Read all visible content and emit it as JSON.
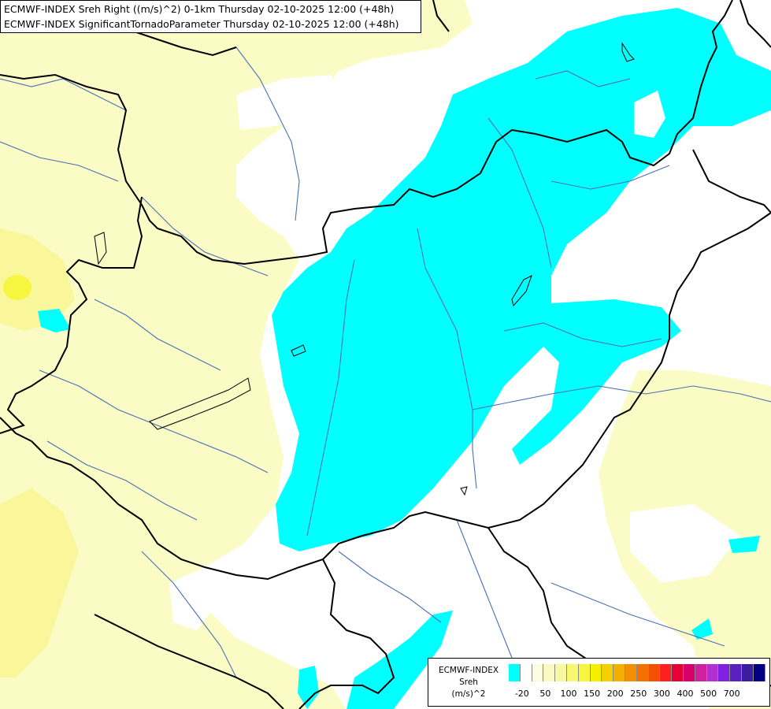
{
  "header": {
    "line1": "ECMWF-INDEX Sreh Right ((m/s)^2) 0-1km Thursday 02-10-2025 12:00 (+48h)",
    "line2": "ECMWF-INDEX SignificantTornadoParameter Thursday 02-10-2025 12:00 (+48h)"
  },
  "legend": {
    "title_line1": "ECMWF-INDEX",
    "title_line2": "Sreh",
    "title_line3": "(m/s)^2",
    "colors": [
      "#00ffff",
      "#ffffff",
      "#fcfce0",
      "#fafac0",
      "#f8f8a0",
      "#f7f770",
      "#f6f640",
      "#f4f000",
      "#f4d000",
      "#f4b000",
      "#f49000",
      "#f47000",
      "#f45000",
      "#ff2020",
      "#e60036",
      "#d8006a",
      "#d0209e",
      "#b030d0",
      "#8020e0",
      "#5a20c0",
      "#3a1ea0",
      "#000080"
    ],
    "ticks": [
      "-20",
      "50",
      "100",
      "150",
      "200",
      "250",
      "300",
      "400",
      "500",
      "700"
    ]
  },
  "colors": {
    "land_light_yellow": "#fbfbc6",
    "land_yellow": "#f9f79a",
    "srh_negative": "#00ffff",
    "border": "#000000",
    "river": "#4a6fb5"
  }
}
